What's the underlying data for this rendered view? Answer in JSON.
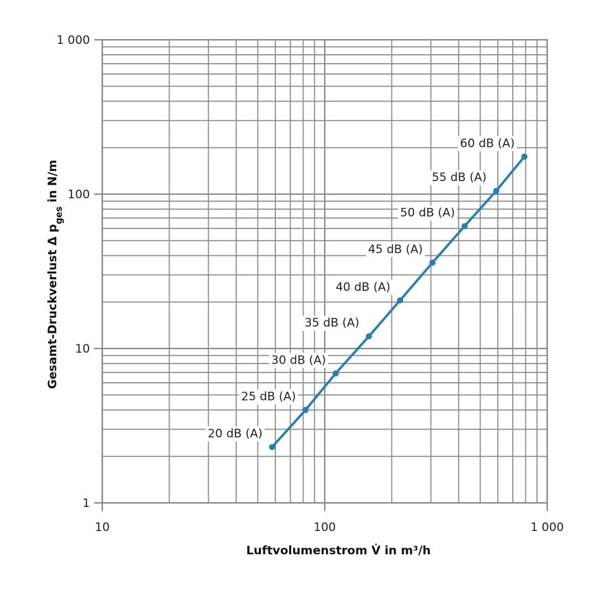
{
  "chart_data": {
    "type": "line",
    "xlabel": "Luftvolumenstrom V̇ in m³/h",
    "ylabel_parts": {
      "main": "Gesamt-Druckverlust Δ p",
      "sub": "ges",
      "tail": " in N/m"
    },
    "xscale": "log",
    "yscale": "log",
    "xlim": [
      10,
      1000
    ],
    "ylim": [
      1,
      1000
    ],
    "grid": true,
    "x_tick_labels": [
      "10",
      "100",
      "1 000"
    ],
    "y_tick_labels": [
      "1",
      "10",
      "100",
      "1 000"
    ],
    "series": [
      {
        "color": "#2a7fb0",
        "points": [
          {
            "x": 58,
            "y": 2.3,
            "label": "20 dB (A)"
          },
          {
            "x": 82,
            "y": 4.0,
            "label": "25 dB (A)"
          },
          {
            "x": 112,
            "y": 6.9,
            "label": "30 dB (A)"
          },
          {
            "x": 158,
            "y": 12,
            "label": "35 dB (A)"
          },
          {
            "x": 218,
            "y": 20.5,
            "label": "40 dB (A)"
          },
          {
            "x": 305,
            "y": 36,
            "label": "45 dB (A)"
          },
          {
            "x": 425,
            "y": 62,
            "label": "50 dB (A)"
          },
          {
            "x": 590,
            "y": 105,
            "label": "55 dB (A)"
          },
          {
            "x": 790,
            "y": 175,
            "label": "60 dB (A)"
          }
        ]
      }
    ]
  }
}
